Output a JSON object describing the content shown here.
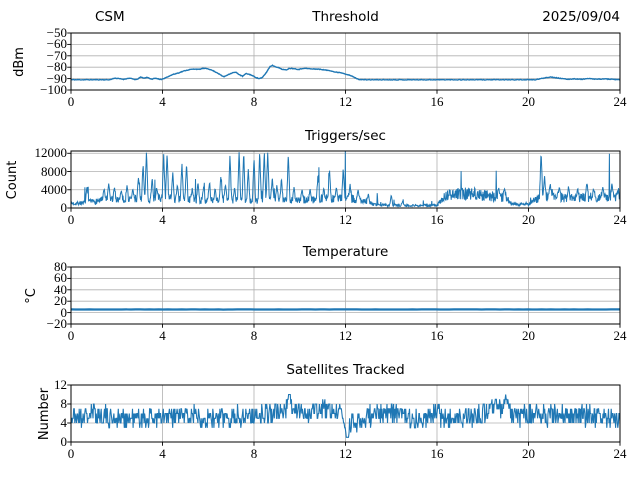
{
  "figure": {
    "background": "#ffffff",
    "line_color": "#1f77b4",
    "grid_color": "#b0b0b0",
    "spine_color": "#000000"
  },
  "chart_data": [
    {
      "id": "threshold",
      "type": "line",
      "title_left": "CSM",
      "title": "Threshold",
      "title_right": "2025/09/04",
      "ylabel": "dBm",
      "xlabel": "",
      "xlim": [
        0,
        24
      ],
      "ylim": [
        -100,
        -50
      ],
      "xticks": [
        0,
        4,
        8,
        12,
        16,
        20,
        24
      ],
      "xtick_labels": [
        "0",
        "4",
        "8",
        "12",
        "16",
        "20",
        "24"
      ],
      "yticks": [
        -100,
        -90,
        -80,
        -70,
        -60,
        -50
      ],
      "ytick_labels": [
        "−100",
        "−90",
        "−80",
        "−70",
        "−60",
        "−50"
      ],
      "grid": true,
      "legend": "none",
      "series": {
        "name": "rf-threshold-dbm",
        "samples": 900,
        "seed": 11,
        "noise": 0.25,
        "linewidth": 1.4,
        "clamp": [
          -100,
          -50
        ],
        "keypoints": [
          [
            0,
            -91
          ],
          [
            1.7,
            -91
          ],
          [
            1.9,
            -89.6
          ],
          [
            2.1,
            -90
          ],
          [
            2.3,
            -90.6
          ],
          [
            2.55,
            -89.6
          ],
          [
            2.85,
            -91
          ],
          [
            3.05,
            -88.7
          ],
          [
            3.2,
            -89.6
          ],
          [
            3.35,
            -88.8
          ],
          [
            3.5,
            -90.6
          ],
          [
            3.7,
            -89.6
          ],
          [
            3.95,
            -91
          ],
          [
            4.2,
            -88.6
          ],
          [
            4.45,
            -86.4
          ],
          [
            4.7,
            -85
          ],
          [
            4.95,
            -83.2
          ],
          [
            5.2,
            -82
          ],
          [
            5.45,
            -81.6
          ],
          [
            5.6,
            -82
          ],
          [
            5.75,
            -81
          ],
          [
            6.0,
            -81.4
          ],
          [
            6.2,
            -83
          ],
          [
            6.4,
            -85
          ],
          [
            6.6,
            -87.6
          ],
          [
            6.7,
            -88.4
          ],
          [
            6.85,
            -86.6
          ],
          [
            7.05,
            -85
          ],
          [
            7.2,
            -84.4
          ],
          [
            7.4,
            -87
          ],
          [
            7.5,
            -88
          ],
          [
            7.65,
            -85.6
          ],
          [
            7.85,
            -86.6
          ],
          [
            8.05,
            -88.6
          ],
          [
            8.2,
            -90
          ],
          [
            8.35,
            -89.4
          ],
          [
            8.55,
            -84.4
          ],
          [
            8.7,
            -79.4
          ],
          [
            8.8,
            -78.4
          ],
          [
            8.95,
            -79.6
          ],
          [
            9.1,
            -80.6
          ],
          [
            9.25,
            -82
          ],
          [
            9.4,
            -82.4
          ],
          [
            9.55,
            -81
          ],
          [
            9.75,
            -81.2
          ],
          [
            9.95,
            -82
          ],
          [
            10.15,
            -81
          ],
          [
            10.35,
            -81.2
          ],
          [
            10.55,
            -81.6
          ],
          [
            10.75,
            -81.6
          ],
          [
            10.95,
            -82
          ],
          [
            11.15,
            -82.6
          ],
          [
            11.35,
            -83
          ],
          [
            11.55,
            -84.4
          ],
          [
            11.75,
            -84.6
          ],
          [
            11.95,
            -85.6
          ],
          [
            12.1,
            -86.6
          ],
          [
            12.25,
            -87.6
          ],
          [
            12.4,
            -89
          ],
          [
            12.55,
            -90.6
          ],
          [
            12.75,
            -91
          ],
          [
            20.3,
            -91
          ],
          [
            20.55,
            -90
          ],
          [
            20.8,
            -89
          ],
          [
            21.0,
            -88.6
          ],
          [
            21.2,
            -89.2
          ],
          [
            21.45,
            -90
          ],
          [
            21.7,
            -90.6
          ],
          [
            22.0,
            -90.2
          ],
          [
            22.3,
            -90.6
          ],
          [
            22.6,
            -90
          ],
          [
            23.0,
            -90.6
          ],
          [
            23.3,
            -90.2
          ],
          [
            23.6,
            -90.6
          ],
          [
            24,
            -91
          ]
        ]
      }
    },
    {
      "id": "triggers-per-sec",
      "type": "line",
      "title": "Triggers/sec",
      "ylabel": "Count",
      "xlabel": "",
      "xlim": [
        0,
        24
      ],
      "ylim": [
        0,
        12500
      ],
      "xticks": [
        0,
        4,
        8,
        12,
        16,
        20,
        24
      ],
      "xtick_labels": [
        "0",
        "4",
        "8",
        "12",
        "16",
        "20",
        "24"
      ],
      "yticks": [
        0,
        4000,
        8000,
        12000
      ],
      "ytick_labels": [
        "0",
        "4000",
        "8000",
        "12000"
      ],
      "grid": true,
      "legend": "none",
      "series": {
        "name": "trigger-count",
        "samples": 1500,
        "seed": 7,
        "noise_rel": 0.45,
        "burst": {
          "prob": 0.02,
          "mult_min": 1.8,
          "mult_max": 4.2
        },
        "spike_width": 0.07,
        "linewidth": 1.0,
        "clamp": [
          100,
          12500
        ],
        "keypoints": [
          [
            0,
            1000
          ],
          [
            0.5,
            1100
          ],
          [
            1,
            1400
          ],
          [
            1.5,
            1900
          ],
          [
            2,
            2000
          ],
          [
            2.5,
            1800
          ],
          [
            3,
            2200
          ],
          [
            3.5,
            2000
          ],
          [
            4,
            2200
          ],
          [
            4.5,
            2000
          ],
          [
            5,
            1900
          ],
          [
            5.5,
            1700
          ],
          [
            6,
            1600
          ],
          [
            6.5,
            1900
          ],
          [
            7,
            1800
          ],
          [
            7.5,
            1700
          ],
          [
            8,
            1400
          ],
          [
            8.5,
            1800
          ],
          [
            9,
            1900
          ],
          [
            9.5,
            1800
          ],
          [
            10,
            1700
          ],
          [
            10.5,
            1800
          ],
          [
            11,
            2100
          ],
          [
            11.5,
            2000
          ],
          [
            12,
            2300
          ],
          [
            12.5,
            1800
          ],
          [
            12.9,
            1600
          ],
          [
            13.3,
            650
          ],
          [
            14,
            600
          ],
          [
            15,
            550
          ],
          [
            16,
            550
          ],
          [
            16.35,
            2700
          ],
          [
            16.7,
            3000
          ],
          [
            17,
            3100
          ],
          [
            17.4,
            3200
          ],
          [
            17.8,
            3000
          ],
          [
            18.2,
            2800
          ],
          [
            18.6,
            2500
          ],
          [
            19,
            2300
          ],
          [
            19.25,
            900
          ],
          [
            19.6,
            800
          ],
          [
            20,
            900
          ],
          [
            20.3,
            1800
          ],
          [
            20.6,
            2600
          ],
          [
            21,
            2400
          ],
          [
            21.5,
            2300
          ],
          [
            22,
            2100
          ],
          [
            22.5,
            2400
          ],
          [
            23,
            2300
          ],
          [
            23.5,
            2500
          ],
          [
            24,
            2100
          ]
        ],
        "spikes": [
          [
            0.7,
            4800
          ],
          [
            1.45,
            4300
          ],
          [
            1.65,
            5400
          ],
          [
            1.9,
            4600
          ],
          [
            2.2,
            3900
          ],
          [
            2.45,
            5000
          ],
          [
            2.7,
            4200
          ],
          [
            2.95,
            6900
          ],
          [
            3.15,
            9600
          ],
          [
            3.3,
            12400
          ],
          [
            3.55,
            6600
          ],
          [
            3.75,
            4400
          ],
          [
            4.05,
            11900
          ],
          [
            4.2,
            12200
          ],
          [
            4.45,
            7900
          ],
          [
            4.65,
            5200
          ],
          [
            4.85,
            9800
          ],
          [
            5.05,
            9900
          ],
          [
            5.3,
            4400
          ],
          [
            5.55,
            5600
          ],
          [
            5.8,
            4900
          ],
          [
            6.05,
            5400
          ],
          [
            6.3,
            4400
          ],
          [
            6.55,
            6900
          ],
          [
            6.75,
            5200
          ],
          [
            6.95,
            11600
          ],
          [
            7.15,
            4600
          ],
          [
            7.35,
            12400
          ],
          [
            7.55,
            12400
          ],
          [
            7.75,
            8600
          ],
          [
            8.0,
            11200
          ],
          [
            8.25,
            12500
          ],
          [
            8.45,
            12500
          ],
          [
            8.6,
            12500
          ],
          [
            8.8,
            6800
          ],
          [
            9.0,
            5100
          ],
          [
            9.2,
            6600
          ],
          [
            9.5,
            12000
          ],
          [
            9.75,
            4600
          ],
          [
            10.1,
            4100
          ],
          [
            10.45,
            4300
          ],
          [
            10.8,
            7600
          ],
          [
            11.05,
            4300
          ],
          [
            11.3,
            8500
          ],
          [
            11.6,
            4600
          ],
          [
            11.9,
            8800
          ],
          [
            12.2,
            5300
          ],
          [
            12.55,
            4100
          ],
          [
            13.0,
            3100
          ],
          [
            14.0,
            2900
          ],
          [
            14.5,
            1500
          ],
          [
            18.7,
            4400
          ],
          [
            18.95,
            4500
          ],
          [
            20.55,
            12400
          ],
          [
            20.7,
            7100
          ],
          [
            20.95,
            5300
          ],
          [
            21.35,
            4700
          ],
          [
            21.75,
            4600
          ],
          [
            22.15,
            4400
          ],
          [
            22.55,
            5500
          ],
          [
            22.85,
            4100
          ],
          [
            23.25,
            4700
          ],
          [
            23.65,
            5400
          ],
          [
            23.9,
            3900
          ]
        ]
      }
    },
    {
      "id": "temperature",
      "type": "line",
      "title": "Temperature",
      "ylabel": "°C",
      "xlabel": "",
      "xlim": [
        0,
        24
      ],
      "ylim": [
        -20,
        80
      ],
      "xticks": [
        0,
        4,
        8,
        12,
        16,
        20,
        24
      ],
      "xtick_labels": [
        "0",
        "4",
        "8",
        "12",
        "16",
        "20",
        "24"
      ],
      "yticks": [
        -20,
        0,
        20,
        40,
        60,
        80
      ],
      "ytick_labels": [
        "−20",
        "0",
        "20",
        "40",
        "60",
        "80"
      ],
      "grid": true,
      "legend": "none",
      "series": {
        "name": "temperature-celsius",
        "samples": 120,
        "seed": 3,
        "noise": 0.15,
        "linewidth": 2.2,
        "clamp": [
          -20,
          80
        ],
        "keypoints": [
          [
            0,
            5.5
          ],
          [
            24,
            5.5
          ]
        ]
      }
    },
    {
      "id": "satellites-tracked",
      "type": "line",
      "title": "Satellites Tracked",
      "ylabel": "Number",
      "xlabel": "",
      "xlim": [
        0,
        24
      ],
      "ylim": [
        0,
        12
      ],
      "xticks": [
        0,
        4,
        8,
        12,
        16,
        20,
        24
      ],
      "xtick_labels": [
        "0",
        "4",
        "8",
        "12",
        "16",
        "20",
        "24"
      ],
      "yticks": [
        0,
        4,
        8,
        12
      ],
      "ytick_labels": [
        "0",
        "4",
        "8",
        "12"
      ],
      "grid": true,
      "legend": "none",
      "series": {
        "name": "satellite-count",
        "samples": 1000,
        "seed": 21,
        "noise": 2.2,
        "round": true,
        "linewidth": 1.1,
        "clamp": [
          1,
          11
        ],
        "spike_width": 0.12,
        "keypoints": [
          [
            0,
            5
          ],
          [
            0.5,
            5.5
          ],
          [
            1,
            6
          ],
          [
            1.5,
            5.5
          ],
          [
            2,
            5
          ],
          [
            2.5,
            4.8
          ],
          [
            3,
            5
          ],
          [
            3.5,
            5.2
          ],
          [
            4,
            5
          ],
          [
            4.5,
            5.2
          ],
          [
            5,
            5.5
          ],
          [
            5.5,
            5.8
          ],
          [
            6,
            5.2
          ],
          [
            6.5,
            5
          ],
          [
            7,
            5.3
          ],
          [
            7.5,
            5.5
          ],
          [
            8,
            5.8
          ],
          [
            8.5,
            6
          ],
          [
            9,
            6.2
          ],
          [
            9.5,
            7.0
          ],
          [
            9.7,
            6.5
          ],
          [
            10,
            6.2
          ],
          [
            10.5,
            6.5
          ],
          [
            11,
            6.8
          ],
          [
            11.5,
            6.8
          ],
          [
            11.9,
            6
          ],
          [
            12.05,
            3
          ],
          [
            12.3,
            4
          ],
          [
            12.7,
            4.5
          ],
          [
            13,
            5.5
          ],
          [
            13.5,
            6.2
          ],
          [
            14,
            6.2
          ],
          [
            14.5,
            5.5
          ],
          [
            15,
            4.8
          ],
          [
            15.5,
            5.5
          ],
          [
            16,
            5.8
          ],
          [
            16.5,
            5
          ],
          [
            17,
            4.8
          ],
          [
            17.5,
            5.2
          ],
          [
            18,
            6
          ],
          [
            18.5,
            6.8
          ],
          [
            18.8,
            6.5
          ],
          [
            19.1,
            7
          ],
          [
            19.4,
            5.5
          ],
          [
            20,
            5.5
          ],
          [
            20.5,
            5.8
          ],
          [
            21,
            5.5
          ],
          [
            21.5,
            5.8
          ],
          [
            22,
            5.2
          ],
          [
            22.5,
            5.5
          ],
          [
            23,
            5.3
          ],
          [
            23.5,
            5
          ],
          [
            24,
            4.2
          ]
        ],
        "spikes": [
          [
            9.55,
            10.3,
            0.15
          ],
          [
            12.05,
            1,
            0.12
          ],
          [
            18.55,
            9.5,
            0.12
          ],
          [
            19.0,
            9.8,
            0.12
          ]
        ]
      }
    }
  ]
}
